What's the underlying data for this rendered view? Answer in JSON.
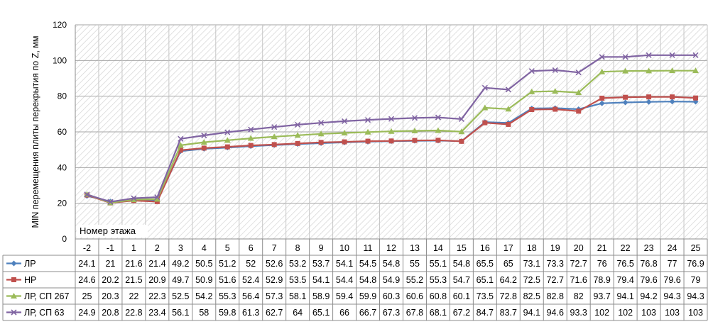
{
  "chart_data": {
    "type": "line",
    "title": "",
    "ylabel": "MIN перемещения плиты перекрытия по Z, мм",
    "xlabel": "Номер этажа",
    "ylim": [
      0,
      120
    ],
    "yticks": [
      "0",
      "20",
      "40",
      "60",
      "80",
      "100",
      "120"
    ],
    "grid": true,
    "legend": "data-table-left",
    "categories": [
      "-2",
      "-1",
      "1",
      "2",
      "3",
      "4",
      "5",
      "6",
      "7",
      "8",
      "9",
      "10",
      "11",
      "12",
      "13",
      "14",
      "15",
      "16",
      "17",
      "18",
      "19",
      "20",
      "21",
      "22",
      "23",
      "24",
      "25"
    ],
    "series": [
      {
        "name": "ЛР",
        "color": "#4F81BD",
        "marker": "diamond",
        "values": [
          24.1,
          21,
          21.6,
          21.4,
          49.2,
          50.5,
          51.2,
          52,
          52.6,
          53.2,
          53.7,
          54.1,
          54.5,
          54.8,
          55,
          55.1,
          54.8,
          65.5,
          65,
          73.1,
          73.3,
          72.7,
          76,
          76.5,
          76.8,
          77,
          76.9
        ],
        "labels": [
          "24.1",
          "21",
          "21.6",
          "21.4",
          "49.2",
          "50.5",
          "51.2",
          "52",
          "52.6",
          "53.2",
          "53.7",
          "54.1",
          "54.5",
          "54.8",
          "55",
          "55.1",
          "54.8",
          "65.5",
          "65",
          "73.1",
          "73.3",
          "72.7",
          "76",
          "76.5",
          "76.8",
          "77",
          "76.9"
        ]
      },
      {
        "name": "НР",
        "color": "#C0504D",
        "marker": "square",
        "values": [
          24.6,
          20.2,
          21.5,
          20.9,
          49.7,
          50.9,
          51.6,
          52.4,
          52.9,
          53.5,
          54.1,
          54.4,
          54.8,
          54.9,
          55.2,
          55.3,
          54.7,
          65.1,
          64.2,
          72.5,
          72.7,
          71.6,
          78.9,
          79.4,
          79.6,
          79.6,
          79
        ],
        "labels": [
          "24.6",
          "20.2",
          "21.5",
          "20.9",
          "49.7",
          "50.9",
          "51.6",
          "52.4",
          "52.9",
          "53.5",
          "54.1",
          "54.4",
          "54.8",
          "54.9",
          "55.2",
          "55.3",
          "54.7",
          "65.1",
          "64.2",
          "72.5",
          "72.7",
          "71.6",
          "78.9",
          "79.4",
          "79.6",
          "79.6",
          "79"
        ]
      },
      {
        "name": "ЛР, СП 267",
        "color": "#9BBB59",
        "marker": "triangle",
        "values": [
          25,
          20.3,
          22,
          22.3,
          52.5,
          54.2,
          55.3,
          56.4,
          57.3,
          58.1,
          58.9,
          59.4,
          59.9,
          60.3,
          60.6,
          60.8,
          60.1,
          73.5,
          72.8,
          82.5,
          82.8,
          82,
          93.7,
          94.1,
          94.2,
          94.3,
          94.3
        ],
        "labels": [
          "25",
          "20.3",
          "22",
          "22.3",
          "52.5",
          "54.2",
          "55.3",
          "56.4",
          "57.3",
          "58.1",
          "58.9",
          "59.4",
          "59.9",
          "60.3",
          "60.6",
          "60.8",
          "60.1",
          "73.5",
          "72.8",
          "82.5",
          "82.8",
          "82",
          "93.7",
          "94.1",
          "94.2",
          "94.3",
          "94.3"
        ]
      },
      {
        "name": "ЛР, СП 63",
        "color": "#8064A2",
        "marker": "x",
        "values": [
          24.9,
          20.8,
          22.8,
          23.4,
          56.1,
          58,
          59.8,
          61.3,
          62.7,
          64,
          65.1,
          66,
          66.7,
          67.3,
          67.8,
          68.1,
          67.2,
          84.7,
          83.7,
          94.1,
          94.6,
          93.3,
          102,
          102,
          103,
          103,
          103
        ],
        "labels": [
          "24.9",
          "20.8",
          "22.8",
          "23.4",
          "56.1",
          "58",
          "59.8",
          "61.3",
          "62.7",
          "64",
          "65.1",
          "66",
          "66.7",
          "67.3",
          "67.8",
          "68.1",
          "67.2",
          "84.7",
          "83.7",
          "94.1",
          "94.6",
          "93.3",
          "102",
          "102",
          "103",
          "103",
          "103"
        ]
      }
    ]
  }
}
